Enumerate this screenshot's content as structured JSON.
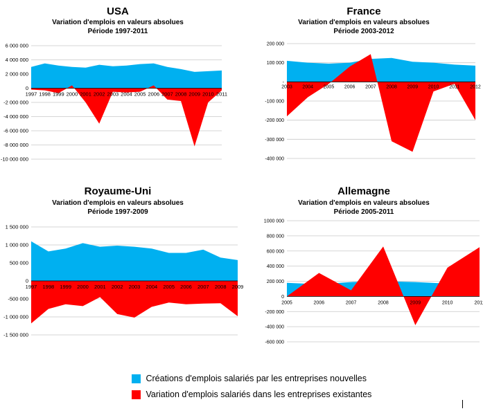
{
  "colors": {
    "nouvelles": "#00B0F0",
    "existantes": "#FF0000"
  },
  "legend": {
    "nouvelles": "Créations d'emplois salariés par les entreprises nouvelles",
    "existantes": "Variation d'emplois salariés dans les entreprises existantes"
  },
  "chart_data": [
    {
      "type": "area",
      "title": "USA",
      "subtitle": "Variation d'emplois en valeurs absolues",
      "period": "Période 1997-2011",
      "categories": [
        "1997",
        "1998",
        "1999",
        "2000",
        "2001",
        "2002",
        "2003",
        "2004",
        "2005",
        "2006",
        "2007",
        "2008",
        "2009",
        "2010",
        "2011"
      ],
      "ylim": [
        -10000000,
        6000000
      ],
      "yticks": [
        6000000,
        4000000,
        2000000,
        0,
        -2000000,
        -4000000,
        -6000000,
        -8000000,
        -10000000
      ],
      "ytick_labels": [
        "6 000 000",
        "4 000 000",
        "2 000 000",
        "0",
        "-2 000 000",
        "-4 000 000",
        "-6 000 000",
        "-8 000 000",
        "-10 000 000"
      ],
      "series": [
        {
          "key": "nouvelles",
          "values": [
            3000000,
            3500000,
            3200000,
            3000000,
            2900000,
            3300000,
            3100000,
            3200000,
            3400000,
            3500000,
            3000000,
            2700000,
            2300000,
            2400000,
            2500000
          ]
        },
        {
          "key": "existantes",
          "values": [
            -200000,
            -300000,
            -700000,
            400000,
            -2000000,
            -5000000,
            -500000,
            -600000,
            -500000,
            400000,
            -1600000,
            -1800000,
            -8200000,
            -2000000,
            -300000
          ]
        }
      ]
    },
    {
      "type": "area",
      "title": "France",
      "subtitle": "Variation d'emplois en valeurs absolues",
      "period": "Période 2003-2012",
      "categories": [
        "2003",
        "2004",
        "2005",
        "2006",
        "2007",
        "2008",
        "2009",
        "2010",
        "2011",
        "2012"
      ],
      "ylim": [
        -400000,
        200000
      ],
      "yticks": [
        200000,
        100000,
        0,
        -100000,
        -200000,
        -300000,
        -400000
      ],
      "ytick_labels": [
        "200 000",
        "100 000",
        "-",
        "-100 000",
        "-200 000",
        "-300 000",
        "-400 000"
      ],
      "series": [
        {
          "key": "nouvelles",
          "values": [
            110000,
            100000,
            95000,
            100000,
            120000,
            125000,
            105000,
            100000,
            90000,
            85000
          ]
        },
        {
          "key": "existantes",
          "values": [
            -180000,
            -80000,
            -10000,
            80000,
            145000,
            -310000,
            -365000,
            -50000,
            -10000,
            -200000
          ]
        }
      ]
    },
    {
      "type": "area",
      "title": "Royaume-Uni",
      "subtitle": "Variation d'emplois en valeurs absolues",
      "period": "Période 1997-2009",
      "categories": [
        "1997",
        "1998",
        "1999",
        "2000",
        "2001",
        "2002",
        "2003",
        "2004",
        "2005",
        "2006",
        "2007",
        "2008",
        "2009"
      ],
      "ylim": [
        -1500000,
        1500000
      ],
      "yticks": [
        1500000,
        1000000,
        500000,
        0,
        -500000,
        -1000000,
        -1500000
      ],
      "ytick_labels": [
        "1 500 000",
        "1 000 000",
        "500 000",
        "0",
        "-500 000",
        "-1 000 000",
        "-1 500 000"
      ],
      "series": [
        {
          "key": "nouvelles",
          "values": [
            1100000,
            820000,
            900000,
            1050000,
            950000,
            980000,
            950000,
            900000,
            780000,
            780000,
            870000,
            650000,
            580000
          ]
        },
        {
          "key": "existantes",
          "values": [
            -1180000,
            -780000,
            -650000,
            -700000,
            -450000,
            -920000,
            -1020000,
            -720000,
            -600000,
            -650000,
            -630000,
            -620000,
            -980000
          ]
        }
      ]
    },
    {
      "type": "area",
      "title": "Allemagne",
      "subtitle": "Variation d'emplois en valeurs absolues",
      "period": "Période 2005-2011",
      "categories": [
        "2005",
        "2006",
        "2007",
        "2008",
        "2009",
        "2010",
        "2011"
      ],
      "ylim": [
        -600000,
        1000000
      ],
      "yticks": [
        1000000,
        800000,
        600000,
        400000,
        200000,
        0,
        -200000,
        -400000,
        -600000
      ],
      "ytick_labels": [
        "1000 000",
        "800 000",
        "600 000",
        "400 000",
        "200 000",
        "0",
        "-200 000",
        "-400 000",
        "-600 000"
      ],
      "series": [
        {
          "key": "nouvelles",
          "values": [
            180000,
            160000,
            190000,
            200000,
            190000,
            170000,
            160000
          ]
        },
        {
          "key": "existantes",
          "values": [
            0,
            310000,
            80000,
            660000,
            -380000,
            380000,
            650000
          ]
        }
      ]
    }
  ]
}
